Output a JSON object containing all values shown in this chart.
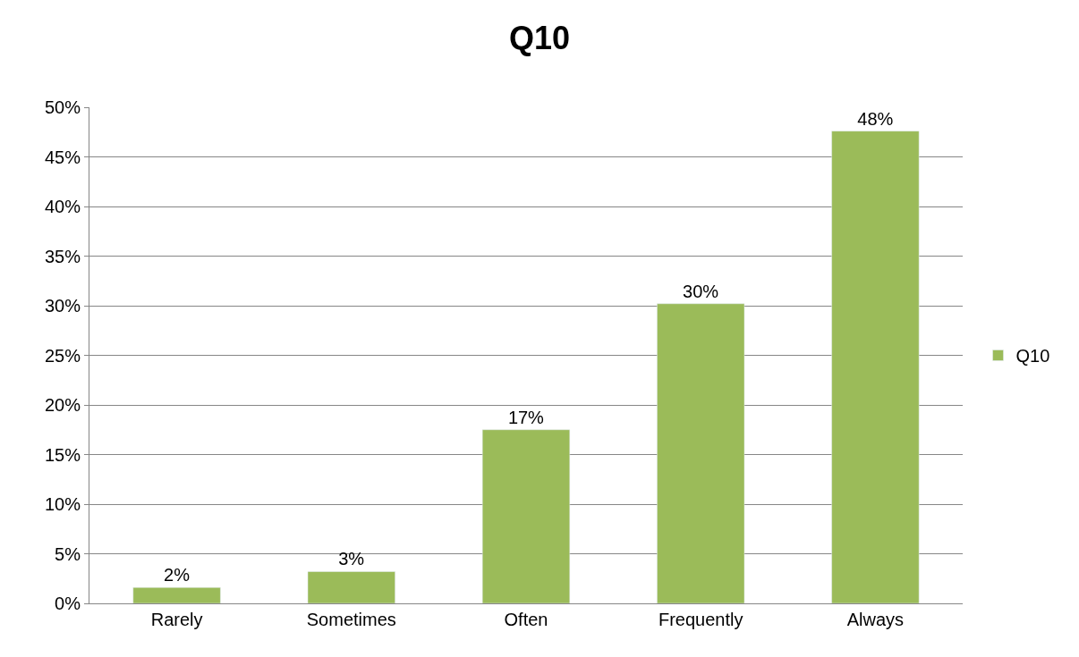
{
  "chart_data": {
    "type": "bar",
    "title": "Q10",
    "categories": [
      "Rarely",
      "Sometimes",
      "Often",
      "Frequently",
      "Always"
    ],
    "series": [
      {
        "name": "Q10",
        "color": "#9bbb59",
        "values": [
          1.6,
          3.2,
          17.5,
          30.2,
          47.6
        ],
        "value_labels": [
          "2%",
          "3%",
          "17%",
          "30%",
          "48%"
        ]
      }
    ],
    "ylim": [
      0,
      50
    ],
    "yticks": [
      {
        "value": 0,
        "label": "0%"
      },
      {
        "value": 5,
        "label": "5%"
      },
      {
        "value": 10,
        "label": "10%"
      },
      {
        "value": 15,
        "label": "15%"
      },
      {
        "value": 20,
        "label": "20%"
      },
      {
        "value": 25,
        "label": "25%"
      },
      {
        "value": 30,
        "label": "30%"
      },
      {
        "value": 35,
        "label": "35%"
      },
      {
        "value": 40,
        "label": "40%"
      },
      {
        "value": 45,
        "label": "45%"
      },
      {
        "value": 50,
        "label": "50%"
      }
    ],
    "grid": "y",
    "legend": "right"
  }
}
